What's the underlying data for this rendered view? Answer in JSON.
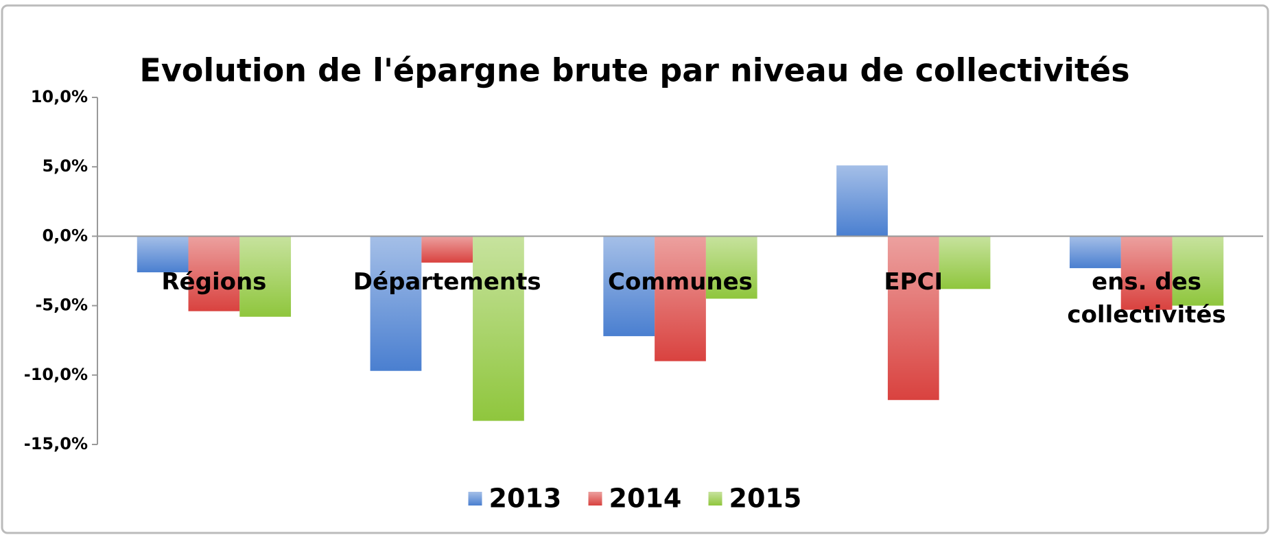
{
  "chart_data": {
    "type": "bar",
    "title": "Evolution de l'épargne brute par niveau de collectivités",
    "categories": [
      "Régions",
      "Départements",
      "Communes",
      "EPCI",
      "ens. des collectivités"
    ],
    "series": [
      {
        "name": "2013",
        "color": "#4a7fd0",
        "values": [
          -2.6,
          -9.7,
          -7.2,
          5.1,
          -2.3
        ]
      },
      {
        "name": "2014",
        "color": "#d9423f",
        "values": [
          -5.4,
          -1.9,
          -9.0,
          -11.8,
          -5.3
        ]
      },
      {
        "name": "2015",
        "color": "#8fc63d",
        "values": [
          -5.8,
          -13.3,
          -4.5,
          -3.8,
          -5.0
        ]
      }
    ],
    "ylim": [
      -15,
      10
    ],
    "yticks": [
      {
        "value": 10,
        "label": "10,0%"
      },
      {
        "value": 5,
        "label": "5,0%"
      },
      {
        "value": 0,
        "label": "0,0%"
      },
      {
        "value": -5,
        "label": "-5,0%"
      },
      {
        "value": -10,
        "label": "-10,0%"
      },
      {
        "value": -15,
        "label": "-15,0%"
      }
    ],
    "legend": "bottom"
  }
}
